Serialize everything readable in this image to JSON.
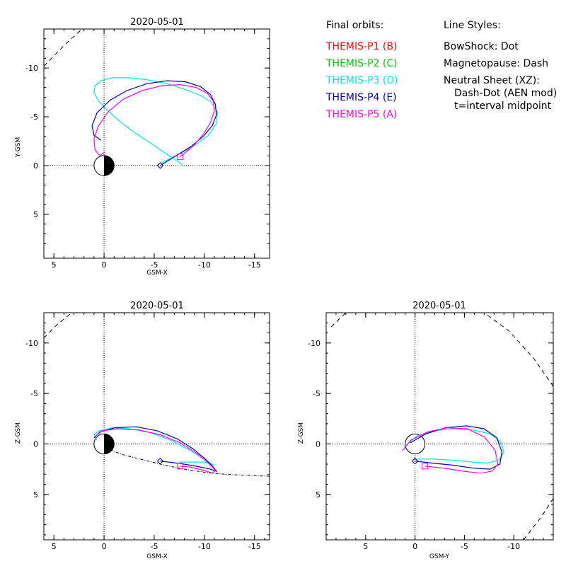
{
  "legend": {
    "final_orbits_title": "Final orbits:",
    "probes": [
      {
        "label": "THEMIS-P1",
        "code": "(B)",
        "color": "#ff0000"
      },
      {
        "label": "THEMIS-P2",
        "code": "(C)",
        "color": "#00cc00"
      },
      {
        "label": "THEMIS-P3",
        "code": "(D)",
        "color": "#00e5ee"
      },
      {
        "label": "THEMIS-P4",
        "code": "(E)",
        "color": "#0000b0"
      },
      {
        "label": "THEMIS-P5",
        "code": "(A)",
        "color": "#ff00ff"
      }
    ],
    "line_styles_title": "Line Styles:",
    "styles": [
      "BowShock: Dot",
      "Magnetopause: Dash",
      "Neutral Sheet (XZ):",
      "Dash-Dot (AEN mod)",
      "t=interval midpoint"
    ]
  },
  "panels": {
    "xy": {
      "title": "2020-05-01",
      "xlabel": "GSM-X",
      "ylabel": "Y-GSM",
      "xticks": [
        "5",
        "0",
        "-5",
        "-10",
        "-15"
      ],
      "yticks": [
        "-10",
        "-5",
        "0",
        "5"
      ]
    },
    "xz": {
      "title": "2020-05-01",
      "xlabel": "GSM-X",
      "ylabel": "Z-GSM",
      "xticks": [
        "5",
        "0",
        "-5",
        "-10",
        "-15"
      ],
      "yticks": [
        "5",
        "0",
        "-5",
        "-10"
      ]
    },
    "yz": {
      "title": "2020-05-01",
      "xlabel": "GSM-Y",
      "ylabel": "Z-GSM",
      "xticks": [
        "5",
        "0",
        "-5",
        "-10"
      ],
      "yticks": [
        "5",
        "0",
        "-5",
        "-10"
      ]
    }
  },
  "chart_data": [
    {
      "type": "scatter",
      "title": "2020-05-01",
      "xlabel": "GSM-X",
      "ylabel": "Y-GSM",
      "xlim": [
        6,
        -16.5
      ],
      "ylim": [
        -14,
        9.5
      ],
      "series": [
        {
          "name": "THEMIS-P3 (D)",
          "color": "#00e5ee",
          "x": [
            -7.8,
            -6.5,
            -4.8,
            -3,
            -1.5,
            -0.3,
            0.6,
            1,
            0.9,
            0.3,
            -0.8,
            -2.4,
            -4.3,
            -6.3,
            -8.1,
            -9.6,
            -10.7,
            -11.3,
            -11.2,
            -10.4,
            -8.8,
            -6.8,
            -5.5
          ],
          "y": [
            -0.1,
            -1,
            -2.2,
            -3.4,
            -4.6,
            -5.7,
            -6.7,
            -7.5,
            -8.2,
            -8.7,
            -9,
            -9,
            -8.8,
            -8.4,
            -7.8,
            -7.2,
            -6.5,
            -5.5,
            -4.3,
            -3.1,
            -1.9,
            -0.8,
            -0.2
          ]
        },
        {
          "name": "THEMIS-P4 (E)",
          "color": "#0000b0",
          "x": [
            -5.6,
            -7,
            -8.6,
            -9.9,
            -10.8,
            -11.2,
            -11.1,
            -10.6,
            -9.6,
            -8.1,
            -6.3,
            -4.3,
            -2.3,
            -0.6,
            0.7,
            1.2,
            1,
            0.3
          ],
          "y": [
            0,
            -0.9,
            -1.9,
            -3,
            -4.1,
            -5.2,
            -6.3,
            -7.3,
            -8.1,
            -8.6,
            -8.7,
            -8.4,
            -7.7,
            -6.7,
            -5.4,
            -4.1,
            -3.1,
            -2.6
          ]
        },
        {
          "name": "THEMIS-P5 (A)",
          "color": "#ff00ff",
          "x": [
            -7.6,
            -8.9,
            -9.9,
            -10.6,
            -11,
            -10.9,
            -10.3,
            -9.2,
            -7.6,
            -5.8,
            -3.8,
            -1.9,
            -0.4,
            0.6,
            1,
            0.9,
            0.4,
            -0.1
          ],
          "y": [
            -0.9,
            -2,
            -3.2,
            -4.4,
            -5.6,
            -6.6,
            -7.4,
            -8,
            -8.3,
            -8.2,
            -7.7,
            -6.8,
            -5.5,
            -4,
            -2.7,
            -1.6,
            -1,
            -1.4
          ]
        },
        {
          "name": "Magnetopause",
          "color": "#000000",
          "x": [
            6,
            4,
            2.2
          ],
          "y": [
            -10.2,
            -12.3,
            -14
          ]
        }
      ]
    },
    {
      "type": "scatter",
      "title": "2020-05-01",
      "xlabel": "GSM-X",
      "ylabel": "Z-GSM",
      "xlim": [
        6,
        -16.5
      ],
      "ylim": [
        -13,
        9.5
      ],
      "series": [
        {
          "name": "THEMIS-P3 (D)",
          "color": "#00e5ee",
          "x": [
            0.7,
            1,
            0.5,
            -0.8,
            -2.6,
            -4.7,
            -6.8,
            -8.5,
            -9.8,
            -10.6,
            -11,
            -10.7,
            -10,
            -9.2,
            -7.5
          ],
          "y": [
            -0.4,
            -0.9,
            -1.3,
            -1.6,
            -1.5,
            -1.1,
            -0.3,
            0.6,
            1.4,
            1.9,
            2.1,
            2,
            1.8,
            1.8,
            1.8
          ]
        },
        {
          "name": "THEMIS-P4 (E)",
          "color": "#0000b0",
          "x": [
            1,
            0.4,
            -1.1,
            -3.2,
            -5.3,
            -7.3,
            -8.9,
            -10.1,
            -10.9,
            -11.2,
            -10.6,
            -9.2,
            -7.3,
            -5.6
          ],
          "y": [
            -0.6,
            -1.2,
            -1.6,
            -1.7,
            -1.3,
            -0.5,
            0.5,
            1.5,
            2.3,
            2.7,
            2.5,
            2.2,
            1.9,
            1.7
          ]
        },
        {
          "name": "THEMIS-P5 (A)",
          "color": "#ff00ff",
          "x": [
            0.8,
            0.2,
            -1.3,
            -3.4,
            -5.6,
            -7.6,
            -9.2,
            -10.4,
            -11.1,
            -10.8,
            -9.9,
            -8.6,
            -7.6
          ],
          "y": [
            -0.8,
            -1.3,
            -1.5,
            -1.4,
            -0.9,
            -0.1,
            0.9,
            1.9,
            2.6,
            2.9,
            2.6,
            2.3,
            2.2
          ]
        },
        {
          "name": "Neutral Sheet (AEN mod)",
          "color": "#000000",
          "x": [
            0,
            -2,
            -4,
            -6,
            -8,
            -10,
            -12,
            -14,
            -16.5
          ],
          "y": [
            0.4,
            1.1,
            1.6,
            2.1,
            2.5,
            2.8,
            3,
            3.1,
            3.2
          ]
        },
        {
          "name": "Magnetopause",
          "color": "#000000",
          "x": [
            6,
            4.6,
            3.2
          ],
          "y": [
            -10.5,
            -11.9,
            -13
          ]
        }
      ]
    },
    {
      "type": "scatter",
      "title": "2020-05-01",
      "xlabel": "GSM-Y",
      "ylabel": "Z-GSM",
      "xlim": [
        9,
        -14
      ],
      "ylim": [
        -13,
        9.5
      ],
      "series": [
        {
          "name": "THEMIS-P3 (D)",
          "color": "#00e5ee",
          "x": [
            -0.2,
            -1.8,
            -3.8,
            -5.8,
            -7.4,
            -8.5,
            -9,
            -8.7,
            -7.6,
            -5.8,
            -3.8,
            -1.8,
            -0.2,
            1.1
          ],
          "y": [
            1.5,
            1.5,
            1.6,
            1.8,
            1.9,
            1.6,
            0.8,
            -0.2,
            -1,
            -1.4,
            -1.5,
            -1.3,
            -0.8,
            0.3
          ]
        },
        {
          "name": "THEMIS-P4 (E)",
          "color": "#0000b0",
          "x": [
            0,
            -1.8,
            -3.8,
            -5.9,
            -7.6,
            -8.6,
            -8.8,
            -8.3,
            -7,
            -5.2,
            -3.1,
            -1.1,
            0.5
          ],
          "y": [
            1.7,
            1.9,
            2.1,
            2.4,
            2.5,
            2,
            0.8,
            -0.6,
            -1.5,
            -1.8,
            -1.6,
            -1,
            -0.1
          ]
        },
        {
          "name": "THEMIS-P5 (A)",
          "color": "#ff00ff",
          "x": [
            -1,
            -2.9,
            -4.9,
            -6.6,
            -7.8,
            -8.4,
            -8.1,
            -7,
            -5.3,
            -3.3,
            -1.3,
            0.4,
            1.3
          ],
          "y": [
            2.2,
            2.4,
            2.7,
            2.9,
            2.7,
            2,
            0.6,
            -0.7,
            -1.5,
            -1.6,
            -1.2,
            -0.4,
            0.7
          ]
        },
        {
          "name": "Magnetopause (upper)",
          "color": "#000000",
          "x": [
            -11,
            -12.8,
            -14
          ],
          "y": [
            9.5,
            7.2,
            5.4
          ]
        },
        {
          "name": "Magnetopause (lower)",
          "color": "#000000",
          "x": [
            -14,
            -12,
            -9.5,
            -7
          ],
          "y": [
            -5.7,
            -8.5,
            -11.2,
            -13
          ]
        },
        {
          "name": "Magnetopause (lower left)",
          "color": "#000000",
          "x": [
            8.5,
            7
          ],
          "y": [
            -11.6,
            -13
          ]
        }
      ]
    }
  ]
}
